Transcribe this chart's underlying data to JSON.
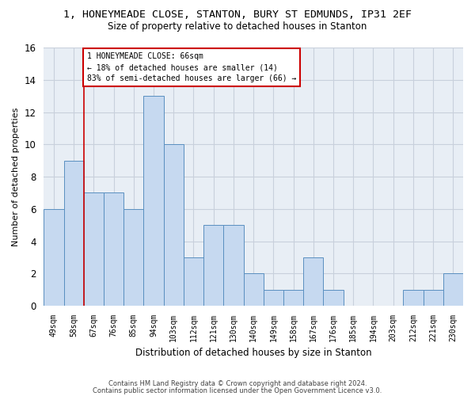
{
  "title_line1": "1, HONEYMEADE CLOSE, STANTON, BURY ST EDMUNDS, IP31 2EF",
  "title_line2": "Size of property relative to detached houses in Stanton",
  "xlabel": "Distribution of detached houses by size in Stanton",
  "ylabel": "Number of detached properties",
  "bar_labels": [
    "49sqm",
    "58sqm",
    "67sqm",
    "76sqm",
    "85sqm",
    "94sqm",
    "103sqm",
    "112sqm",
    "121sqm",
    "130sqm",
    "140sqm",
    "149sqm",
    "158sqm",
    "167sqm",
    "176sqm",
    "185sqm",
    "194sqm",
    "203sqm",
    "212sqm",
    "221sqm",
    "230sqm"
  ],
  "bar_values": [
    6,
    9,
    7,
    7,
    6,
    13,
    10,
    3,
    5,
    5,
    2,
    1,
    1,
    3,
    1,
    0,
    0,
    0,
    1,
    1,
    2
  ],
  "bar_color": "#c6d9f0",
  "bar_edge_color": "#5a8fc0",
  "property_line_x": 1.5,
  "annotation_text": "1 HONEYMEADE CLOSE: 66sqm\n← 18% of detached houses are smaller (14)\n83% of semi-detached houses are larger (66) →",
  "annotation_box_color": "#ffffff",
  "annotation_box_edge": "#cc0000",
  "vline_color": "#cc0000",
  "grid_color": "#c8d0dc",
  "ylim": [
    0,
    16
  ],
  "yticks": [
    0,
    2,
    4,
    6,
    8,
    10,
    12,
    14,
    16
  ],
  "footer_line1": "Contains HM Land Registry data © Crown copyright and database right 2024.",
  "footer_line2": "Contains public sector information licensed under the Open Government Licence v3.0.",
  "bg_color": "#ffffff",
  "plot_bg_color": "#e8eef5"
}
